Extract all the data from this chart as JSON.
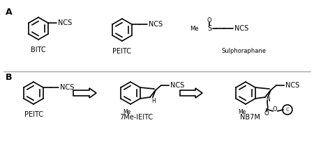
{
  "bg_color": "#ffffff",
  "line_color": "#000000",
  "label_A": "A",
  "label_B": "B",
  "label_BITC": "BITC",
  "label_PEITC": "PEITC",
  "label_Sulphoraphane": "Sulphoraphane",
  "label_NCS": "NCS",
  "label_7Me_IEITC": "7Me-IEITC",
  "label_NB7M": "NB7M",
  "label_Me_1": "Me",
  "label_Me_2": "Me",
  "label_H": "H",
  "label_O": "O",
  "label_S": "S",
  "label_N": "N",
  "label_O2": "O",
  "fontsize_label": 7,
  "fontsize_ncs": 7,
  "fontsize_AB": 9,
  "lw": 1.2
}
